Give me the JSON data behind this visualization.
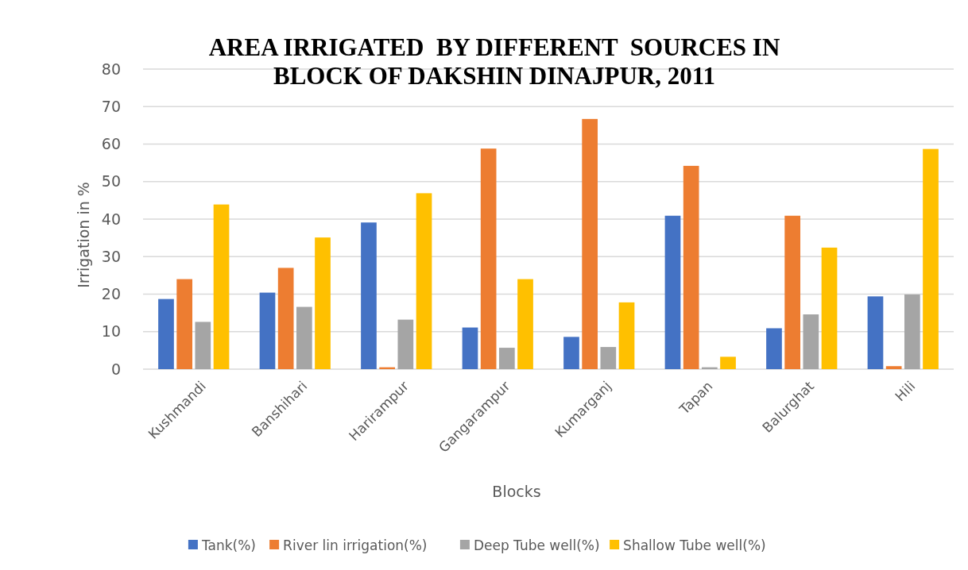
{
  "chart_data": {
    "type": "bar",
    "title": "AREA IRRIGATED  BY DIFFERENT  SOURCES IN\nBLOCK OF DAKSHIN DINAJPUR, 2011",
    "xlabel": "Blocks",
    "ylabel": "Irrigation in %",
    "categories": [
      "Kushmandi",
      "Banshihari",
      "Harirampur",
      "Gangarampur",
      "Kumarganj",
      "Tapan",
      "Balurghat",
      "Hili"
    ],
    "series": [
      {
        "name": "Tank(%)",
        "color": "#4472c4",
        "values": [
          18.7,
          20.4,
          39.1,
          11.1,
          8.6,
          40.9,
          10.9,
          19.4
        ]
      },
      {
        "name": "River lin irrigation(%)",
        "color": "#ed7d31",
        "values": [
          24.0,
          27.0,
          0.5,
          58.8,
          66.7,
          54.2,
          40.9,
          0.8
        ]
      },
      {
        "name": "Deep Tube well(%)",
        "color": "#a5a5a5",
        "values": [
          12.6,
          16.6,
          13.2,
          5.7,
          5.9,
          0.5,
          14.6,
          19.9
        ]
      },
      {
        "name": "Shallow Tube well(%)",
        "color": "#ffc000",
        "values": [
          43.9,
          35.1,
          46.9,
          24.0,
          17.8,
          3.3,
          32.4,
          58.7
        ]
      }
    ],
    "ylim": [
      0,
      80
    ],
    "yticks": [
      0,
      10,
      20,
      30,
      40,
      50,
      60,
      70,
      80
    ],
    "grid": "y",
    "legend": "bottom"
  }
}
